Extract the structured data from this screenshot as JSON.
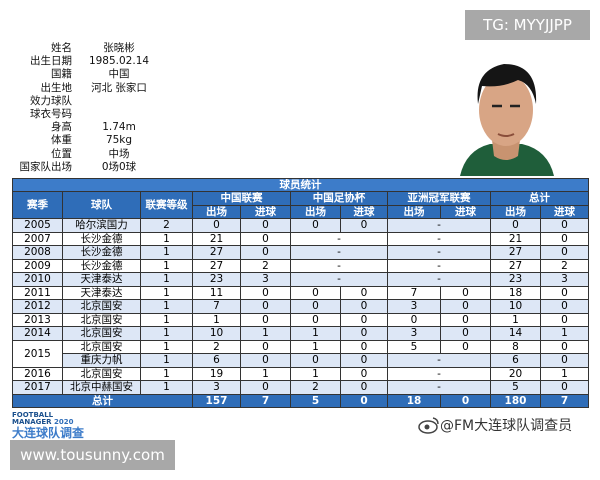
{
  "tag": "TG: MYYJJPP",
  "profile": [
    {
      "label": "姓名",
      "value": "张晓彬"
    },
    {
      "label": "出生日期",
      "value": "1985.02.14"
    },
    {
      "label": "国籍",
      "value": "中国"
    },
    {
      "label": "出生地",
      "value": "河北 张家口"
    },
    {
      "label": "效力球队"
    },
    {
      "label": "球衣号码"
    },
    {
      "label": "身高",
      "value": "1.74m"
    },
    {
      "label": "体重",
      "value": "75kg"
    },
    {
      "label": "位置",
      "value": "中场"
    },
    {
      "label": "国家队出场",
      "value": "0场0球"
    }
  ],
  "table": {
    "title": "球员统计",
    "headers": [
      "赛季",
      "球队",
      "联赛等级"
    ],
    "groups": [
      {
        "name": "中国联赛",
        "cols": [
          "出场",
          "进球"
        ]
      },
      {
        "name": "中国足协杯",
        "cols": [
          "出场",
          "进球"
        ]
      },
      {
        "name": "亚洲冠军联赛",
        "cols": [
          "出场",
          "进球"
        ]
      },
      {
        "name": "总计",
        "cols": [
          "出场",
          "进球"
        ]
      }
    ],
    "rows": [
      {
        "season": "2005",
        "team": "哈尔滨国力",
        "level": 2,
        "stats": [
          0,
          0,
          0,
          0,
          "-",
          0,
          0
        ]
      },
      {
        "season": "2007",
        "team": "长沙金德",
        "level": 1,
        "stats": [
          21,
          0,
          "-",
          "-",
          21,
          0
        ]
      },
      {
        "season": "2008",
        "team": "长沙金德",
        "level": 1,
        "stats": [
          27,
          0,
          "-",
          "-",
          27,
          0
        ]
      },
      {
        "season": "2009",
        "team": "长沙金德",
        "level": 1,
        "stats": [
          27,
          2,
          "-",
          "-",
          27,
          2
        ]
      },
      {
        "season": "2010",
        "team": "天津泰达",
        "level": 1,
        "stats": [
          23,
          3,
          "-",
          "-",
          23,
          3
        ]
      },
      {
        "season": "2011",
        "team": "天津泰达",
        "level": 1,
        "stats": [
          11,
          0,
          0,
          0,
          7,
          0,
          18,
          0
        ]
      },
      {
        "season": "2012",
        "team": "北京国安",
        "level": 1,
        "stats": [
          7,
          0,
          0,
          0,
          3,
          0,
          10,
          0
        ]
      },
      {
        "season": "2013",
        "team": "北京国安",
        "level": 1,
        "stats": [
          1,
          0,
          0,
          0,
          0,
          0,
          1,
          0
        ]
      },
      {
        "season": "2014",
        "team": "北京国安",
        "level": 1,
        "stats": [
          10,
          1,
          1,
          0,
          3,
          0,
          14,
          1
        ]
      },
      {
        "season": "2015",
        "team": "北京国安",
        "level": 1,
        "stats": [
          2,
          0,
          1,
          0,
          5,
          0,
          8,
          0
        ]
      },
      {
        "team": "重庆力帆",
        "level": 1,
        "stats": [
          6,
          0,
          0,
          0,
          "-",
          6,
          0
        ]
      },
      {
        "season": "2016",
        "team": "北京国安",
        "level": 1,
        "stats": [
          19,
          1,
          1,
          0,
          "-",
          20,
          1
        ]
      },
      {
        "season": "2017",
        "team": "北京中赫国安",
        "level": 1,
        "stats": [
          3,
          0,
          2,
          0,
          "-",
          5,
          0
        ]
      }
    ],
    "total": {
      "label": "总计",
      "stats": [
        157,
        7,
        5,
        0,
        18,
        0,
        180,
        7
      ]
    }
  },
  "logo": {
    "line1": "FOOTBALL",
    "line2": "MANAGER",
    "year": "2020",
    "name": "大连球队调查"
  },
  "weibo": "@FM大连球队调查员",
  "site": "www.tousunny.com"
}
